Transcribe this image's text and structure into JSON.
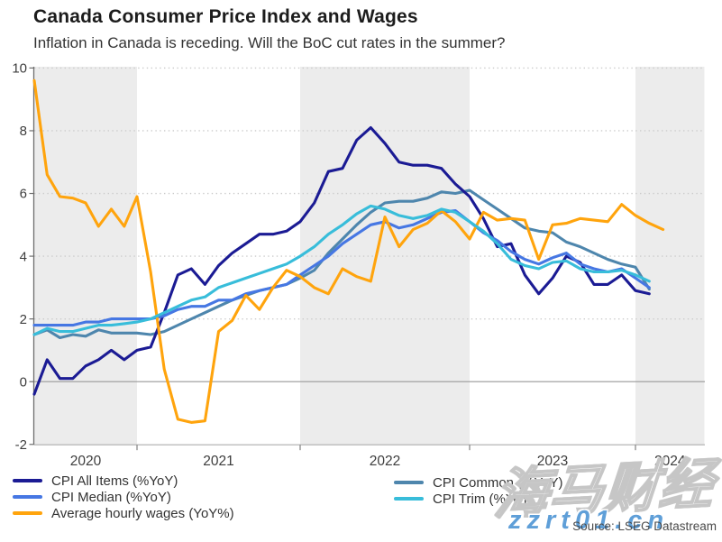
{
  "header": {
    "title": "Canada Consumer Price Index and Wages",
    "subtitle": "Inflation in Canada is receding. Will the BoC cut rates in the summer?"
  },
  "source_note": "Source: LSEG Datastream",
  "watermark": {
    "text": "海马财经",
    "url": "zzrt01.cn"
  },
  "colors": {
    "band": "#ececec",
    "grid": "#cbcbcb",
    "zero_line": "#999999",
    "axis": "#6e6e6e",
    "x_baseline": "#adadad",
    "tick": "#808080",
    "label": "#3d3d3d"
  },
  "legend": {
    "items": [
      {
        "label": "CPI All Items (%YoY)",
        "color": "#1b1b94",
        "column": 1
      },
      {
        "label": "CPI Median (%YoY)",
        "color": "#4677e3",
        "column": 1
      },
      {
        "label": "Average hourly wages (YoY%)",
        "color": "#ffa40d",
        "column": 1
      },
      {
        "label": "CPI Common (%YoY)",
        "color": "#4e86ad",
        "column": 2
      },
      {
        "label": "CPI Trim (%YoY)",
        "color": "#38bdda",
        "column": 2
      }
    ]
  },
  "chart_data": {
    "type": "line",
    "title": "Canada Consumer Price Index and Wages",
    "xlabel": "",
    "ylabel": "",
    "ylim": [
      -2,
      10
    ],
    "grid": "horizontal dotted gridlines at even values; alternating gray year bands; solid line at zero",
    "legend_position": "bottom",
    "x_monthly": [
      "2020-05",
      "2020-06",
      "2020-07",
      "2020-08",
      "2020-09",
      "2020-10",
      "2020-11",
      "2020-12",
      "2021-01",
      "2021-02",
      "2021-03",
      "2021-04",
      "2021-05",
      "2021-06",
      "2021-07",
      "2021-08",
      "2021-09",
      "2021-10",
      "2021-11",
      "2021-12",
      "2022-01",
      "2022-02",
      "2022-03",
      "2022-04",
      "2022-05",
      "2022-06",
      "2022-07",
      "2022-08",
      "2022-09",
      "2022-10",
      "2022-11",
      "2022-12",
      "2023-01",
      "2023-02",
      "2023-03",
      "2023-04",
      "2023-05",
      "2023-06",
      "2023-07",
      "2023-08",
      "2023-09",
      "2023-10",
      "2023-11",
      "2023-12",
      "2024-01",
      "2024-02",
      "2024-03"
    ],
    "x_axis": {
      "tick_labels": [
        "2020",
        "2021",
        "2022",
        "2023",
        "2024"
      ],
      "year_band_shading": true
    },
    "y_axis": {
      "min": -2,
      "max": 10,
      "ticks": [
        -2,
        0,
        2,
        4,
        6,
        8,
        10
      ]
    },
    "series": [
      {
        "name": "CPI All Items (%YoY)",
        "color": "#1b1b94",
        "values": [
          -0.4,
          0.7,
          0.1,
          0.1,
          0.5,
          0.7,
          1.0,
          0.7,
          1.0,
          1.1,
          2.2,
          3.4,
          3.6,
          3.1,
          3.7,
          4.1,
          4.4,
          4.7,
          4.7,
          4.8,
          5.1,
          5.7,
          6.7,
          6.8,
          7.7,
          8.1,
          7.6,
          7.0,
          6.9,
          6.9,
          6.8,
          6.3,
          5.9,
          5.2,
          4.3,
          4.4,
          3.4,
          2.8,
          3.3,
          4.0,
          3.8,
          3.1,
          3.1,
          3.4,
          2.9,
          2.8
        ]
      },
      {
        "name": "CPI Median (%YoY)",
        "color": "#4677e3",
        "values": [
          1.8,
          1.8,
          1.8,
          1.8,
          1.9,
          1.9,
          2.0,
          2.0,
          2.0,
          2.0,
          2.1,
          2.3,
          2.4,
          2.4,
          2.6,
          2.6,
          2.8,
          2.9,
          3.0,
          3.1,
          3.4,
          3.7,
          4.0,
          4.4,
          4.7,
          5.0,
          5.1,
          4.9,
          5.0,
          5.2,
          5.4,
          5.45,
          5.1,
          4.75,
          4.5,
          4.15,
          3.9,
          3.75,
          3.95,
          4.1,
          3.75,
          3.6,
          3.5,
          3.6,
          3.3,
          3.0
        ]
      },
      {
        "name": "Average hourly wages (YoY%)",
        "color": "#ffa40d",
        "values": [
          9.6,
          6.6,
          5.9,
          5.85,
          5.7,
          4.95,
          5.5,
          4.95,
          5.9,
          3.5,
          0.4,
          -1.2,
          -1.3,
          -1.25,
          1.6,
          1.95,
          2.75,
          2.3,
          3.0,
          3.55,
          3.35,
          3.0,
          2.8,
          3.6,
          3.35,
          3.2,
          5.25,
          4.3,
          4.85,
          5.05,
          5.45,
          5.1,
          4.55,
          5.4,
          5.15,
          5.2,
          5.15,
          3.9,
          5.0,
          5.05,
          5.2,
          5.15,
          5.1,
          5.65,
          5.3,
          5.05,
          4.85
        ]
      },
      {
        "name": "CPI Common (%YoY)",
        "color": "#4e86ad",
        "values": [
          1.5,
          1.65,
          1.4,
          1.5,
          1.45,
          1.65,
          1.55,
          1.55,
          1.55,
          1.5,
          1.6,
          1.8,
          2.0,
          2.2,
          2.4,
          2.6,
          2.75,
          2.9,
          3.0,
          3.1,
          3.3,
          3.55,
          4.1,
          4.55,
          5.0,
          5.4,
          5.7,
          5.75,
          5.75,
          5.85,
          6.05,
          6.0,
          6.1,
          5.8,
          5.5,
          5.2,
          4.9,
          4.8,
          4.75,
          4.45,
          4.3,
          4.1,
          3.9,
          3.75,
          3.65,
          2.95
        ]
      },
      {
        "name": "CPI Trim (%YoY)",
        "color": "#38bdda",
        "values": [
          1.5,
          1.7,
          1.6,
          1.6,
          1.7,
          1.8,
          1.8,
          1.85,
          1.9,
          2.0,
          2.2,
          2.4,
          2.6,
          2.7,
          3.0,
          3.15,
          3.3,
          3.45,
          3.6,
          3.75,
          4.0,
          4.3,
          4.7,
          5.0,
          5.35,
          5.6,
          5.5,
          5.3,
          5.2,
          5.3,
          5.5,
          5.4,
          5.1,
          4.8,
          4.4,
          3.9,
          3.7,
          3.6,
          3.8,
          3.85,
          3.6,
          3.5,
          3.5,
          3.55,
          3.4,
          3.2
        ]
      }
    ]
  }
}
